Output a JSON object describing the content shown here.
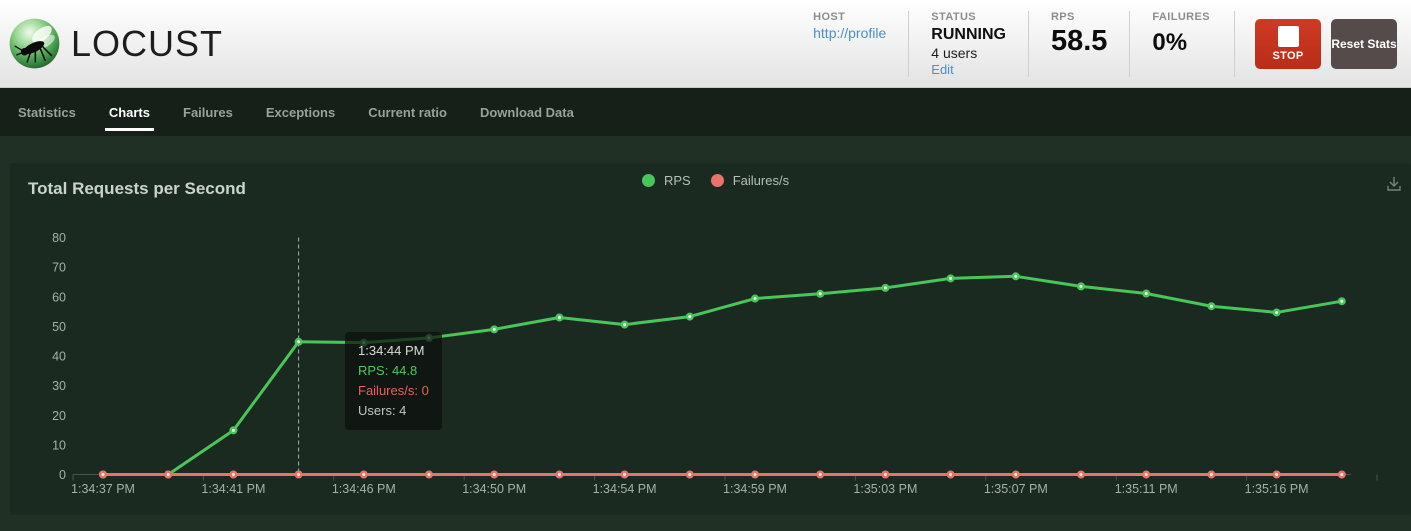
{
  "header": {
    "logo_text": "LOCUST",
    "host": {
      "label": "HOST",
      "value": "http://profile"
    },
    "status": {
      "label": "STATUS",
      "value": "RUNNING",
      "users": "4 users",
      "edit": "Edit"
    },
    "rps": {
      "label": "RPS",
      "value": "58.5"
    },
    "failures": {
      "label": "FAILURES",
      "value": "0%"
    },
    "stop_button": "STOP",
    "reset_button": "Reset Stats"
  },
  "nav": {
    "tabs": [
      {
        "label": "Statistics",
        "active": false
      },
      {
        "label": "Charts",
        "active": true
      },
      {
        "label": "Failures",
        "active": false
      },
      {
        "label": "Exceptions",
        "active": false
      },
      {
        "label": "Current ratio",
        "active": false
      },
      {
        "label": "Download Data",
        "active": false
      }
    ]
  },
  "chart": {
    "title": "Total Requests per Second",
    "legend": [
      {
        "label": "RPS",
        "color": "#48c659"
      },
      {
        "label": "Failures/s",
        "color": "#e8736b"
      }
    ],
    "tooltip": {
      "time": "1:34:44 PM",
      "rps_line": "RPS: 44.8",
      "failures_line": "Failures/s: 0",
      "users_line": "Users: 4"
    }
  },
  "chart_data": {
    "type": "line",
    "title": "Total Requests per Second",
    "x": [
      "1:34:37 PM",
      "1:34:39 PM",
      "1:34:41 PM",
      "1:34:44 PM",
      "1:34:46 PM",
      "1:34:48 PM",
      "1:34:50 PM",
      "1:34:52 PM",
      "1:34:54 PM",
      "1:34:56 PM",
      "1:34:59 PM",
      "1:35:01 PM",
      "1:35:03 PM",
      "1:35:05 PM",
      "1:35:07 PM",
      "1:35:09 PM",
      "1:35:11 PM",
      "1:35:13 PM",
      "1:35:16 PM",
      "1:35:18 PM"
    ],
    "x_tick_labels": [
      "1:34:37 PM",
      "1:34:41 PM",
      "1:34:46 PM",
      "1:34:50 PM",
      "1:34:54 PM",
      "1:34:59 PM",
      "1:35:03 PM",
      "1:35:07 PM",
      "1:35:11 PM",
      "1:35:16 PM"
    ],
    "series": [
      {
        "name": "RPS",
        "color": "#48c659",
        "values": [
          0,
          0,
          14.9,
          44.8,
          44.5,
          46.1,
          49.0,
          53.0,
          50.6,
          53.3,
          59.4,
          61.0,
          63.0,
          66.2,
          66.9,
          63.5,
          61.1,
          56.8,
          54.7,
          58.5
        ]
      },
      {
        "name": "Failures/s",
        "color": "#e8736b",
        "values": [
          0,
          0,
          0,
          0,
          0,
          0,
          0,
          0,
          0,
          0,
          0,
          0,
          0,
          0,
          0,
          0,
          0,
          0,
          0,
          0
        ]
      }
    ],
    "ylim": [
      0,
      80
    ],
    "y_ticks": [
      0,
      10,
      20,
      30,
      40,
      50,
      60,
      70,
      80
    ],
    "xlabel": "",
    "ylabel": "",
    "grid": false,
    "legend_position": "top-center",
    "highlight_index": 3,
    "highlight": {
      "time": "1:34:44 PM",
      "rps": 44.8,
      "failures": 0,
      "users": 4
    }
  }
}
